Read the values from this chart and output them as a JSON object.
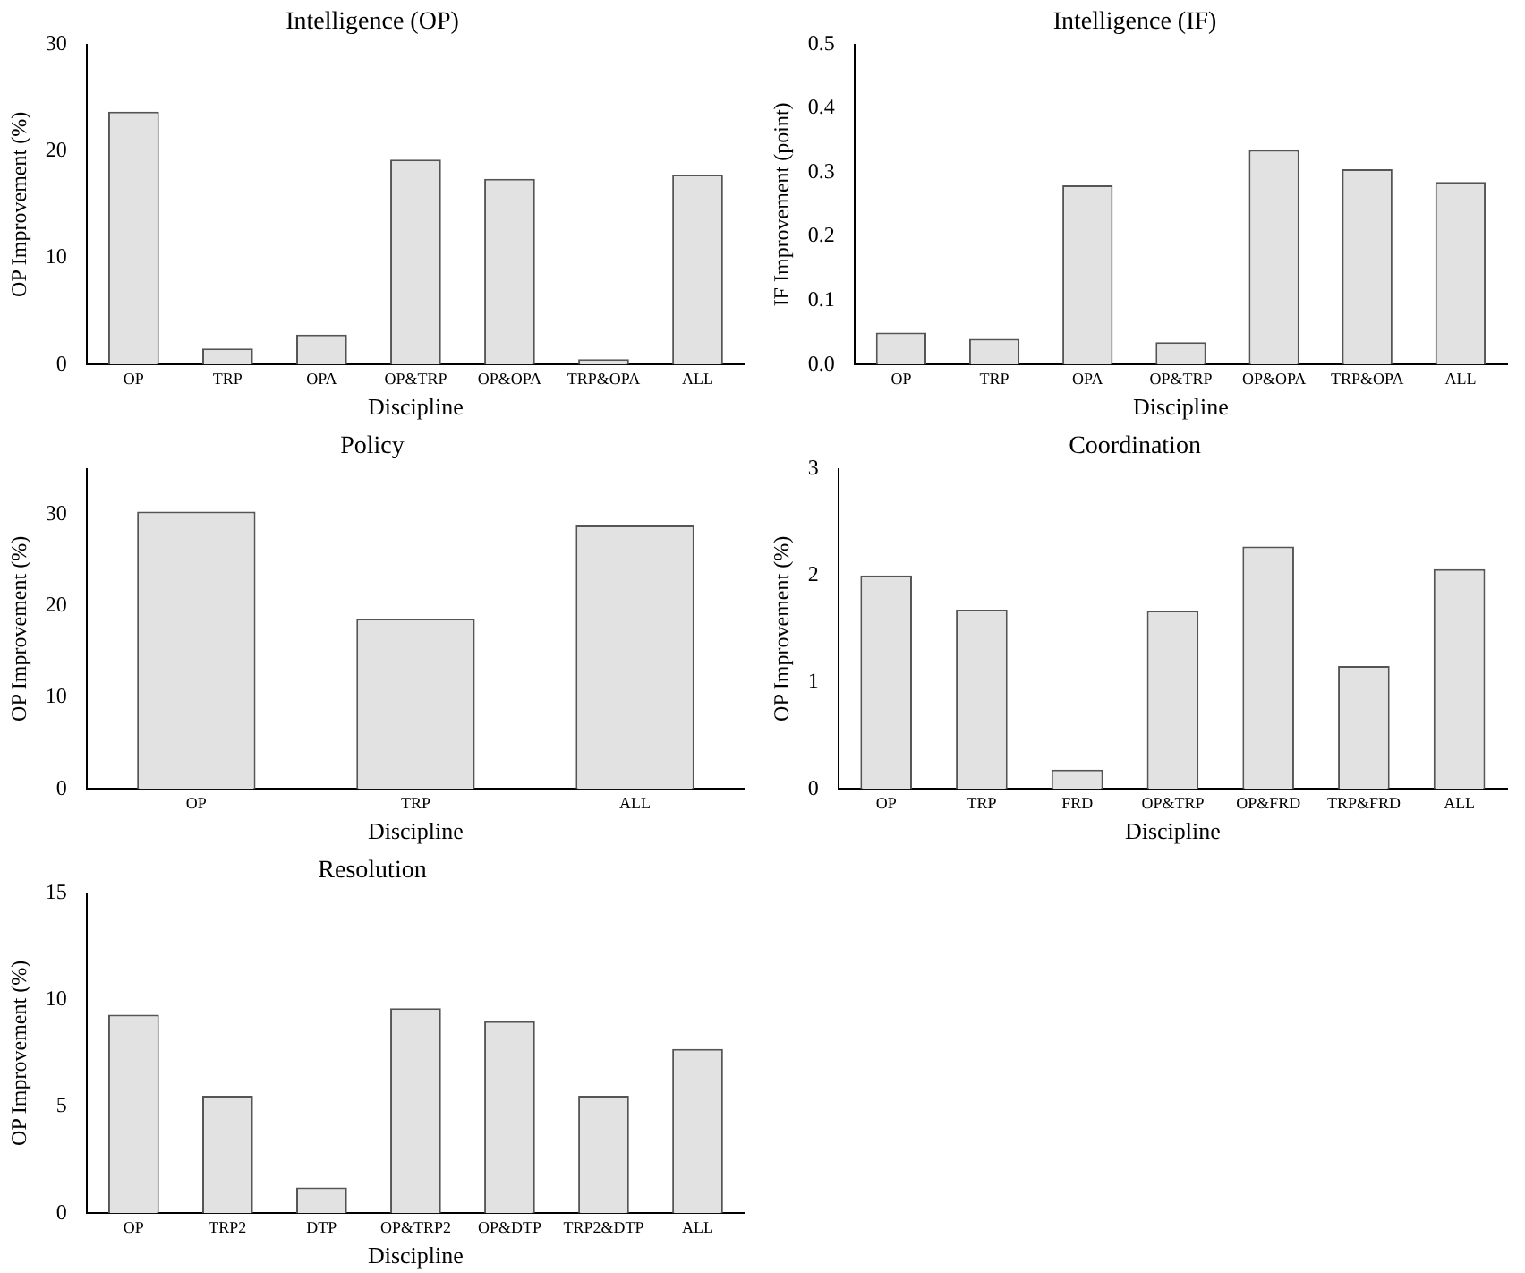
{
  "chart_data": [
    {
      "type": "bar",
      "title": "Intelligence (OP)",
      "xlabel": "Discipline",
      "ylabel": "OP Improvement (%)",
      "categories": [
        "OP",
        "TRP",
        "OPA",
        "OP&TRP",
        "OP&OPA",
        "TRP&OPA",
        "ALL"
      ],
      "values": [
        23.7,
        1.5,
        2.8,
        19.2,
        17.4,
        0.5,
        17.8
      ],
      "color": "#e2e2e2",
      "ylim": [
        0,
        30
      ],
      "yticks": [
        0,
        10,
        20,
        30
      ],
      "grid": false,
      "legend": false
    },
    {
      "type": "bar",
      "title": "Intelligence (IF)",
      "xlabel": "Discipline",
      "ylabel": "IF Improvement (point)",
      "categories": [
        "OP",
        "TRP",
        "OPA",
        "OP&TRP",
        "OP&OPA",
        "TRP&OPA",
        "ALL"
      ],
      "values": [
        0.05,
        0.04,
        0.28,
        0.035,
        0.335,
        0.305,
        0.285
      ],
      "color": "#e2e2e2",
      "ylim": [
        0,
        0.5
      ],
      "yticks": [
        {
          "value": 0,
          "label": "0.0"
        },
        0.1,
        0.2,
        0.3,
        0.4,
        0.5
      ],
      "grid": false,
      "legend": false
    },
    {
      "type": "bar",
      "title": "Policy",
      "xlabel": "Discipline",
      "ylabel": "OP Improvement (%)",
      "categories": [
        "OP",
        "TRP",
        "ALL"
      ],
      "values": [
        30.3,
        18.6,
        28.8
      ],
      "color": "#e2e2e2",
      "ylim": [
        0,
        35
      ],
      "yticks": [
        0,
        10,
        20,
        30
      ],
      "grid": false,
      "legend": false
    },
    {
      "type": "bar",
      "title": "Coordination",
      "xlabel": "Discipline",
      "ylabel": "OP Improvement (%)",
      "categories": [
        "OP",
        "TRP",
        "FRD",
        "OP&TRP",
        "OP&FRD",
        "TRP&FRD",
        "ALL"
      ],
      "values": [
        2.0,
        1.68,
        0.18,
        1.67,
        2.27,
        1.15,
        2.06
      ],
      "color": "#e2e2e2",
      "ylim": [
        0,
        3
      ],
      "yticks": [
        0,
        1,
        2,
        3
      ],
      "grid": false,
      "legend": false
    },
    {
      "type": "bar",
      "title": "Resolution",
      "xlabel": "Discipline",
      "ylabel": "OP Improvement (%)",
      "categories": [
        "OP",
        "TRP2",
        "DTP",
        "OP&TRP2",
        "OP&DTP",
        "TRP2&DTP",
        "ALL"
      ],
      "values": [
        9.3,
        5.5,
        1.2,
        9.6,
        9.0,
        5.5,
        7.7
      ],
      "color": "#e2e2e2",
      "ylim": [
        0,
        15
      ],
      "yticks": [
        0,
        5,
        10,
        15
      ],
      "grid": false,
      "legend": false
    }
  ]
}
